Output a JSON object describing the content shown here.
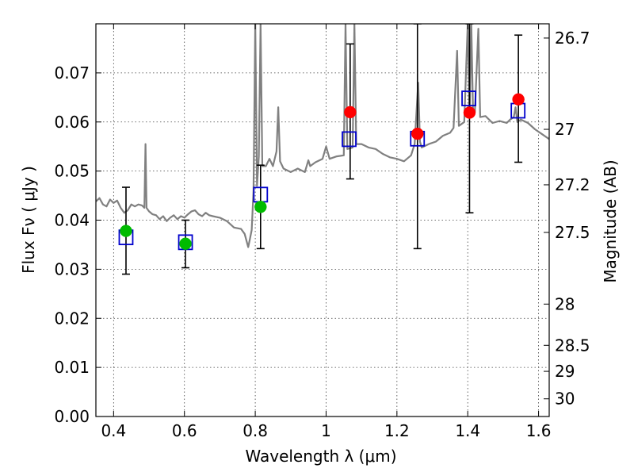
{
  "chart_data": {
    "type": "scatter",
    "xlabel": "Wavelength  λ (μm)",
    "ylabel": "Flux  Fν  ( μJy )",
    "y2label": "Magnitude (AB)",
    "xlim": [
      0.35,
      1.63
    ],
    "ylim": [
      0.0,
      0.08
    ],
    "grid": true,
    "x_ticks": [
      0.4,
      0.6,
      0.8,
      1.0,
      1.2,
      1.4,
      1.6
    ],
    "x_tick_labels": [
      "0.4",
      "0.6",
      "0.8",
      "1",
      "1.2",
      "1.4",
      "1.6"
    ],
    "y_ticks": [
      0.0,
      0.01,
      0.02,
      0.03,
      0.04,
      0.05,
      0.06,
      0.07
    ],
    "y_tick_labels": [
      "0.00",
      "0.01",
      "0.02",
      "0.03",
      "0.04",
      "0.05",
      "0.06",
      "0.07"
    ],
    "right_ticks": [
      {
        "flux": 0.0771,
        "label": "26.7"
      },
      {
        "flux": 0.0585,
        "label": "27"
      },
      {
        "flux": 0.0472,
        "label": "27.2"
      },
      {
        "flux": 0.0375,
        "label": "27.5"
      },
      {
        "flux": 0.0229,
        "label": "28"
      },
      {
        "flux": 0.0145,
        "label": "28.5"
      },
      {
        "flux": 0.0092,
        "label": "29"
      },
      {
        "flux": 0.0036,
        "label": "30"
      }
    ],
    "series": [
      {
        "kind": "spectrum",
        "color": "#808080",
        "points": [
          [
            0.35,
            0.0438
          ],
          [
            0.36,
            0.0445
          ],
          [
            0.37,
            0.0432
          ],
          [
            0.38,
            0.0428
          ],
          [
            0.39,
            0.0442
          ],
          [
            0.4,
            0.0435
          ],
          [
            0.41,
            0.044
          ],
          [
            0.42,
            0.0425
          ],
          [
            0.43,
            0.0415
          ],
          [
            0.44,
            0.042
          ],
          [
            0.45,
            0.0432
          ],
          [
            0.46,
            0.0428
          ],
          [
            0.47,
            0.0432
          ],
          [
            0.48,
            0.043
          ],
          [
            0.487,
            0.0425
          ],
          [
            0.49,
            0.0555
          ],
          [
            0.493,
            0.0425
          ],
          [
            0.5,
            0.0418
          ],
          [
            0.51,
            0.0412
          ],
          [
            0.52,
            0.041
          ],
          [
            0.53,
            0.0402
          ],
          [
            0.54,
            0.0408
          ],
          [
            0.55,
            0.0398
          ],
          [
            0.56,
            0.0405
          ],
          [
            0.57,
            0.041
          ],
          [
            0.58,
            0.0402
          ],
          [
            0.59,
            0.0408
          ],
          [
            0.6,
            0.0405
          ],
          [
            0.61,
            0.0412
          ],
          [
            0.62,
            0.0418
          ],
          [
            0.63,
            0.042
          ],
          [
            0.64,
            0.0412
          ],
          [
            0.65,
            0.0408
          ],
          [
            0.66,
            0.0415
          ],
          [
            0.67,
            0.041
          ],
          [
            0.68,
            0.0408
          ],
          [
            0.7,
            0.0405
          ],
          [
            0.72,
            0.0398
          ],
          [
            0.74,
            0.0385
          ],
          [
            0.76,
            0.0382
          ],
          [
            0.77,
            0.0372
          ],
          [
            0.78,
            0.0345
          ],
          [
            0.785,
            0.0362
          ],
          [
            0.79,
            0.038
          ],
          [
            0.795,
            0.046
          ],
          [
            0.8,
            0.08
          ],
          [
            0.805,
            0.047
          ],
          [
            0.81,
            0.053
          ],
          [
            0.815,
            0.08
          ],
          [
            0.82,
            0.051
          ],
          [
            0.83,
            0.051
          ],
          [
            0.84,
            0.0525
          ],
          [
            0.85,
            0.051
          ],
          [
            0.86,
            0.054
          ],
          [
            0.865,
            0.063
          ],
          [
            0.87,
            0.052
          ],
          [
            0.88,
            0.0505
          ],
          [
            0.9,
            0.0498
          ],
          [
            0.92,
            0.0505
          ],
          [
            0.94,
            0.0498
          ],
          [
            0.95,
            0.0522
          ],
          [
            0.955,
            0.051
          ],
          [
            0.97,
            0.0518
          ],
          [
            0.99,
            0.0525
          ],
          [
            1.0,
            0.055
          ],
          [
            1.01,
            0.0525
          ],
          [
            1.03,
            0.053
          ],
          [
            1.05,
            0.0532
          ],
          [
            1.055,
            0.08
          ],
          [
            1.06,
            0.0545
          ],
          [
            1.075,
            0.0548
          ],
          [
            1.08,
            0.08
          ],
          [
            1.085,
            0.0555
          ],
          [
            1.1,
            0.0555
          ],
          [
            1.12,
            0.0548
          ],
          [
            1.14,
            0.0545
          ],
          [
            1.16,
            0.0535
          ],
          [
            1.18,
            0.0528
          ],
          [
            1.2,
            0.0525
          ],
          [
            1.22,
            0.052
          ],
          [
            1.24,
            0.0532
          ],
          [
            1.25,
            0.0555
          ],
          [
            1.26,
            0.068
          ],
          [
            1.265,
            0.056
          ],
          [
            1.27,
            0.0548
          ],
          [
            1.29,
            0.0555
          ],
          [
            1.31,
            0.056
          ],
          [
            1.33,
            0.0572
          ],
          [
            1.35,
            0.0578
          ],
          [
            1.36,
            0.0588
          ],
          [
            1.37,
            0.0745
          ],
          [
            1.375,
            0.0592
          ],
          [
            1.39,
            0.06
          ],
          [
            1.4,
            0.08
          ],
          [
            1.405,
            0.061
          ],
          [
            1.41,
            0.08
          ],
          [
            1.415,
            0.062
          ],
          [
            1.42,
            0.062
          ],
          [
            1.43,
            0.079
          ],
          [
            1.435,
            0.061
          ],
          [
            1.45,
            0.0612
          ],
          [
            1.47,
            0.0598
          ],
          [
            1.49,
            0.0602
          ],
          [
            1.51,
            0.0598
          ],
          [
            1.52,
            0.0605
          ],
          [
            1.53,
            0.061
          ],
          [
            1.535,
            0.063
          ],
          [
            1.54,
            0.06
          ],
          [
            1.55,
            0.0605
          ],
          [
            1.57,
            0.0598
          ],
          [
            1.59,
            0.0585
          ],
          [
            1.61,
            0.0575
          ],
          [
            1.63,
            0.0565
          ]
        ]
      },
      {
        "kind": "boxes",
        "color": "#0000cc",
        "points": [
          [
            0.435,
            0.0365
          ],
          [
            0.603,
            0.0355
          ],
          [
            0.815,
            0.0452
          ],
          [
            1.065,
            0.0565
          ],
          [
            1.258,
            0.0566
          ],
          [
            1.403,
            0.0648
          ],
          [
            1.542,
            0.0623
          ]
        ]
      },
      {
        "kind": "dots",
        "color": "#00bb00",
        "points": [
          [
            0.435,
            0.0378
          ],
          [
            0.603,
            0.0352
          ],
          [
            0.815,
            0.0427
          ]
        ]
      },
      {
        "kind": "dots",
        "color": "#ff0000",
        "points": [
          [
            1.068,
            0.062
          ],
          [
            1.258,
            0.0576
          ],
          [
            1.405,
            0.0619
          ],
          [
            1.543,
            0.0646
          ]
        ]
      },
      {
        "kind": "errorbars",
        "color": "#000000",
        "bars": [
          [
            0.435,
            0.029,
            0.0467
          ],
          [
            0.603,
            0.0303,
            0.04
          ],
          [
            0.815,
            0.0342,
            0.0512
          ],
          [
            1.068,
            0.0484,
            0.0759
          ],
          [
            1.258,
            0.0342,
            0.08
          ],
          [
            1.405,
            0.0415,
            0.08
          ],
          [
            1.543,
            0.0518,
            0.0777
          ]
        ]
      }
    ]
  }
}
